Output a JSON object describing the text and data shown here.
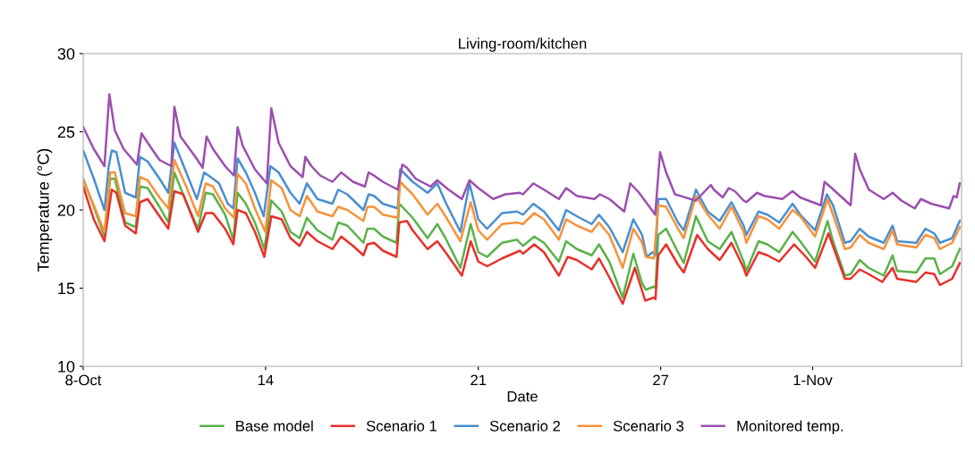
{
  "chart_data": {
    "type": "line",
    "title": "Living-room/kitchen",
    "xlabel": "Date",
    "ylabel": "Temperature (°C)",
    "xlim": [
      8,
      36.9
    ],
    "xticks": [
      {
        "value": 8,
        "label": "8-Oct"
      },
      14,
      21,
      27,
      {
        "value": 32,
        "label": "1-Nov"
      }
    ],
    "ylim": [
      10,
      30
    ],
    "yticks": [
      10,
      15,
      20,
      25,
      30
    ],
    "grid": false,
    "legend": "bottom",
    "marker": "none",
    "line_style": "solid",
    "series": [
      {
        "name": "Base model",
        "color": "#5ab24a",
        "x": [
          8.0,
          8.35,
          8.7,
          8.89,
          9.04,
          9.38,
          9.73,
          9.87,
          10.12,
          10.51,
          10.8,
          11.0,
          11.39,
          11.78,
          12.03,
          12.27,
          12.67,
          12.94,
          13.08,
          13.35,
          13.65,
          13.96,
          14.19,
          14.53,
          14.82,
          15.12,
          15.36,
          15.71,
          16.2,
          16.39,
          16.69,
          17.22,
          17.35,
          17.57,
          17.86,
          18.31,
          18.4,
          18.84,
          19.33,
          19.65,
          19.92,
          20.41,
          20.75,
          21.0,
          21.29,
          21.78,
          22.27,
          22.47,
          22.84,
          23.16,
          23.65,
          23.89,
          24.24,
          24.73,
          24.97,
          25.31,
          25.75,
          26.1,
          26.39,
          26.51,
          26.78,
          26.83,
          26.92,
          27.18,
          27.57,
          27.76,
          28.16,
          28.55,
          28.94,
          29.33,
          29.73,
          29.82,
          30.22,
          30.51,
          30.9,
          31.34,
          31.59,
          32.08,
          32.49,
          32.67,
          33.06,
          33.25,
          33.55,
          33.84,
          34.34,
          34.63,
          34.78,
          35.41,
          35.71,
          36.0,
          36.19,
          36.59,
          36.84
        ],
        "values": [
          22.0,
          20.2,
          18.3,
          22.0,
          22.0,
          19.2,
          18.9,
          21.5,
          21.4,
          20.2,
          19.2,
          22.4,
          20.5,
          18.8,
          21.1,
          21.0,
          19.7,
          18.1,
          21.1,
          20.4,
          19.2,
          17.5,
          20.6,
          19.9,
          18.6,
          18.2,
          19.5,
          18.7,
          18.1,
          19.2,
          19.0,
          17.9,
          18.8,
          18.8,
          18.3,
          17.9,
          20.4,
          19.5,
          18.2,
          19.1,
          18.2,
          16.3,
          19.1,
          17.3,
          17.0,
          17.9,
          18.1,
          17.7,
          18.3,
          17.9,
          16.7,
          18.0,
          17.5,
          17.1,
          17.8,
          16.7,
          14.4,
          17.2,
          15.3,
          14.9,
          15.1,
          15.0,
          18.4,
          18.8,
          17.3,
          16.6,
          19.6,
          18.0,
          17.5,
          18.6,
          16.7,
          16.1,
          18.0,
          17.8,
          17.3,
          18.6,
          18.0,
          16.7,
          19.3,
          18.0,
          15.8,
          15.9,
          16.8,
          16.3,
          15.8,
          17.1,
          16.1,
          16.0,
          16.9,
          16.9,
          15.9,
          16.4,
          17.5
        ]
      },
      {
        "name": "Scenario 1",
        "color": "#e8302a",
        "x": [
          8.0,
          8.35,
          8.7,
          8.94,
          9.09,
          9.38,
          9.73,
          9.87,
          10.12,
          10.51,
          10.8,
          11.0,
          11.29,
          11.78,
          12.03,
          12.27,
          12.67,
          12.94,
          13.08,
          13.35,
          13.65,
          13.96,
          14.19,
          14.53,
          14.82,
          15.12,
          15.36,
          15.71,
          16.2,
          16.49,
          16.88,
          17.22,
          17.35,
          17.57,
          17.86,
          18.31,
          18.4,
          18.65,
          18.84,
          19.33,
          19.65,
          19.92,
          20.46,
          20.75,
          21.0,
          21.29,
          21.78,
          22.37,
          22.47,
          22.84,
          23.16,
          23.65,
          23.94,
          24.24,
          24.73,
          24.97,
          25.31,
          25.75,
          26.15,
          26.49,
          26.78,
          26.83,
          26.92,
          27.18,
          27.57,
          27.76,
          28.2,
          28.55,
          28.94,
          29.33,
          29.73,
          29.82,
          30.22,
          30.51,
          30.9,
          31.39,
          31.78,
          32.08,
          32.52,
          33.06,
          33.25,
          33.55,
          33.84,
          34.29,
          34.63,
          34.78,
          35.41,
          35.71,
          36.0,
          36.19,
          36.59,
          36.84
        ],
        "values": [
          21.5,
          19.4,
          18.0,
          21.3,
          21.1,
          19.0,
          18.5,
          20.5,
          20.7,
          19.6,
          18.8,
          21.2,
          21.0,
          18.6,
          19.8,
          19.8,
          18.8,
          17.8,
          20.0,
          19.8,
          18.6,
          17.0,
          19.6,
          19.4,
          18.2,
          17.7,
          18.6,
          18.0,
          17.5,
          18.3,
          17.7,
          17.1,
          17.8,
          17.9,
          17.4,
          17.0,
          19.2,
          19.3,
          18.7,
          17.5,
          18.0,
          17.3,
          15.8,
          18.0,
          16.7,
          16.4,
          16.9,
          17.4,
          17.2,
          17.8,
          17.3,
          15.8,
          17.0,
          16.8,
          16.2,
          16.9,
          15.7,
          14.0,
          16.3,
          14.2,
          14.4,
          14.3,
          17.1,
          17.8,
          16.5,
          16.0,
          18.4,
          17.5,
          16.8,
          17.9,
          16.3,
          15.8,
          17.3,
          17.1,
          16.7,
          17.8,
          17.0,
          16.3,
          18.5,
          15.6,
          15.6,
          16.2,
          15.9,
          15.4,
          16.3,
          15.6,
          15.4,
          16.0,
          15.9,
          15.2,
          15.6,
          16.6
        ]
      },
      {
        "name": "Scenario 2",
        "color": "#4a8fd0",
        "x": [
          8.0,
          8.35,
          8.7,
          8.84,
          8.94,
          9.09,
          9.38,
          9.73,
          9.87,
          10.12,
          10.51,
          10.8,
          11.0,
          11.39,
          11.74,
          11.98,
          12.27,
          12.47,
          12.76,
          12.94,
          13.08,
          13.35,
          13.65,
          13.94,
          14.16,
          14.43,
          14.82,
          15.12,
          15.36,
          15.71,
          16.2,
          16.39,
          16.69,
          17.22,
          17.39,
          17.57,
          17.86,
          18.35,
          18.43,
          18.84,
          19.33,
          19.65,
          19.92,
          20.41,
          20.71,
          21.0,
          21.29,
          21.78,
          22.27,
          22.47,
          22.81,
          23.16,
          23.65,
          23.89,
          24.24,
          24.73,
          24.97,
          25.31,
          25.75,
          26.1,
          26.39,
          26.54,
          26.73,
          26.83,
          26.92,
          27.18,
          27.57,
          27.76,
          28.16,
          28.55,
          28.94,
          29.33,
          29.73,
          29.82,
          30.22,
          30.51,
          30.9,
          31.34,
          31.59,
          32.08,
          32.47,
          32.67,
          33.06,
          33.25,
          33.55,
          33.84,
          34.34,
          34.63,
          34.78,
          35.41,
          35.71,
          36.0,
          36.19,
          36.59,
          36.84
        ],
        "values": [
          23.8,
          22.0,
          20.0,
          22.8,
          23.8,
          23.7,
          21.1,
          20.8,
          23.4,
          23.1,
          22.0,
          21.1,
          24.3,
          22.4,
          20.7,
          22.4,
          22.0,
          21.7,
          20.4,
          20.1,
          23.3,
          22.4,
          21.1,
          19.6,
          22.8,
          22.4,
          21.1,
          20.4,
          21.7,
          20.7,
          20.4,
          21.3,
          21.0,
          20.0,
          21.0,
          20.9,
          20.4,
          20.1,
          22.6,
          21.8,
          21.1,
          21.7,
          20.5,
          18.6,
          21.7,
          19.4,
          18.8,
          19.8,
          19.9,
          19.7,
          20.4,
          19.9,
          18.7,
          20.0,
          19.6,
          19.1,
          19.7,
          18.9,
          17.3,
          19.4,
          18.4,
          17.0,
          17.3,
          17.1,
          20.7,
          20.7,
          19.2,
          18.7,
          21.3,
          19.9,
          19.3,
          20.5,
          19.0,
          18.4,
          19.9,
          19.7,
          19.2,
          20.4,
          19.7,
          18.7,
          21.0,
          20.3,
          17.9,
          18.0,
          18.8,
          18.3,
          17.9,
          19.0,
          18.0,
          17.9,
          18.8,
          18.5,
          17.9,
          18.2,
          19.3
        ]
      },
      {
        "name": "Scenario 3",
        "color": "#f6923a",
        "x": [
          8.0,
          8.35,
          8.7,
          8.89,
          9.04,
          9.38,
          9.73,
          9.87,
          10.12,
          10.51,
          10.8,
          11.0,
          11.39,
          11.78,
          12.03,
          12.27,
          12.67,
          12.96,
          13.08,
          13.35,
          13.65,
          13.99,
          14.19,
          14.53,
          14.82,
          15.12,
          15.36,
          15.71,
          16.2,
          16.39,
          16.69,
          17.22,
          17.35,
          17.57,
          17.86,
          18.35,
          18.43,
          18.84,
          19.33,
          19.65,
          19.92,
          20.41,
          20.75,
          21.0,
          21.29,
          21.78,
          22.27,
          22.47,
          22.84,
          23.16,
          23.65,
          23.89,
          24.24,
          24.73,
          24.97,
          25.31,
          25.75,
          26.1,
          26.39,
          26.51,
          26.78,
          26.92,
          27.18,
          27.57,
          27.76,
          28.16,
          28.55,
          28.94,
          29.33,
          29.73,
          29.82,
          30.22,
          30.51,
          30.9,
          31.34,
          31.59,
          32.08,
          32.49,
          32.67,
          33.06,
          33.25,
          33.55,
          33.84,
          34.34,
          34.63,
          34.78,
          35.41,
          35.71,
          36.0,
          36.19,
          36.59,
          36.84
        ],
        "values": [
          21.9,
          20.3,
          18.6,
          22.4,
          22.4,
          19.8,
          19.6,
          22.1,
          21.9,
          20.8,
          20.1,
          23.2,
          21.5,
          19.6,
          21.7,
          21.5,
          20.1,
          19.5,
          22.3,
          21.7,
          20.1,
          18.6,
          21.9,
          21.4,
          20.0,
          19.6,
          20.9,
          19.9,
          19.6,
          20.2,
          20.0,
          19.3,
          20.2,
          20.2,
          19.7,
          19.5,
          21.8,
          21.0,
          19.7,
          20.4,
          19.6,
          18.0,
          20.5,
          18.7,
          18.1,
          19.1,
          19.2,
          19.1,
          19.8,
          19.4,
          18.1,
          19.4,
          19.0,
          18.6,
          19.2,
          18.4,
          16.3,
          18.8,
          17.9,
          17.0,
          16.9,
          20.3,
          20.2,
          18.8,
          18.2,
          20.9,
          19.7,
          18.8,
          20.2,
          18.6,
          17.9,
          19.6,
          19.4,
          18.8,
          20.0,
          19.6,
          18.3,
          20.7,
          19.7,
          17.5,
          17.6,
          18.4,
          17.9,
          17.5,
          18.7,
          17.8,
          17.6,
          18.4,
          18.2,
          17.5,
          17.9,
          18.9
        ]
      },
      {
        "name": "Monitored temp.",
        "color": "#9c4fae",
        "x": [
          8.0,
          8.35,
          8.7,
          8.86,
          9.04,
          9.33,
          9.77,
          9.92,
          10.12,
          10.51,
          10.9,
          11.0,
          11.2,
          11.69,
          11.93,
          12.06,
          12.27,
          12.67,
          12.96,
          13.08,
          13.25,
          13.65,
          14.04,
          14.19,
          14.43,
          14.82,
          15.22,
          15.31,
          15.51,
          15.8,
          16.2,
          16.49,
          16.88,
          17.27,
          17.39,
          17.57,
          17.86,
          18.35,
          18.5,
          18.65,
          18.94,
          19.43,
          19.65,
          20.02,
          20.46,
          20.71,
          21.0,
          21.49,
          21.88,
          22.37,
          22.47,
          22.81,
          23.16,
          23.65,
          23.89,
          24.24,
          24.82,
          25.0,
          25.31,
          25.8,
          26.0,
          26.29,
          26.82,
          26.98,
          27.18,
          27.47,
          28.16,
          28.65,
          28.75,
          29.04,
          29.24,
          29.44,
          29.73,
          29.82,
          30.17,
          30.41,
          31.0,
          31.34,
          31.59,
          32.27,
          32.39,
          32.57,
          33.25,
          33.4,
          33.55,
          33.85,
          34.34,
          34.63,
          34.92,
          35.36,
          35.56,
          35.9,
          36.49,
          36.64,
          36.74,
          36.84
        ],
        "values": [
          25.3,
          23.9,
          22.8,
          27.4,
          25.1,
          23.9,
          22.9,
          24.9,
          24.3,
          23.2,
          22.8,
          26.6,
          24.7,
          23.4,
          22.7,
          24.7,
          23.9,
          22.8,
          22.2,
          25.3,
          24.1,
          22.6,
          21.7,
          26.5,
          24.3,
          22.8,
          22.1,
          23.4,
          22.8,
          22.2,
          21.8,
          22.4,
          21.8,
          21.5,
          22.4,
          22.2,
          21.8,
          21.3,
          22.9,
          22.7,
          22.0,
          21.5,
          21.9,
          21.3,
          20.7,
          21.9,
          21.4,
          20.7,
          21.0,
          21.1,
          21.0,
          21.7,
          21.3,
          20.7,
          21.4,
          20.9,
          20.7,
          21.0,
          20.7,
          19.9,
          21.7,
          21.1,
          19.7,
          23.7,
          22.4,
          21.0,
          20.6,
          21.6,
          21.3,
          20.8,
          21.4,
          21.2,
          20.6,
          20.5,
          21.1,
          20.9,
          20.7,
          21.2,
          20.8,
          20.3,
          21.8,
          21.5,
          20.3,
          23.6,
          22.6,
          21.3,
          20.7,
          21.1,
          20.6,
          20.1,
          20.7,
          20.4,
          20.1,
          20.9,
          20.8,
          21.7
        ]
      }
    ]
  }
}
